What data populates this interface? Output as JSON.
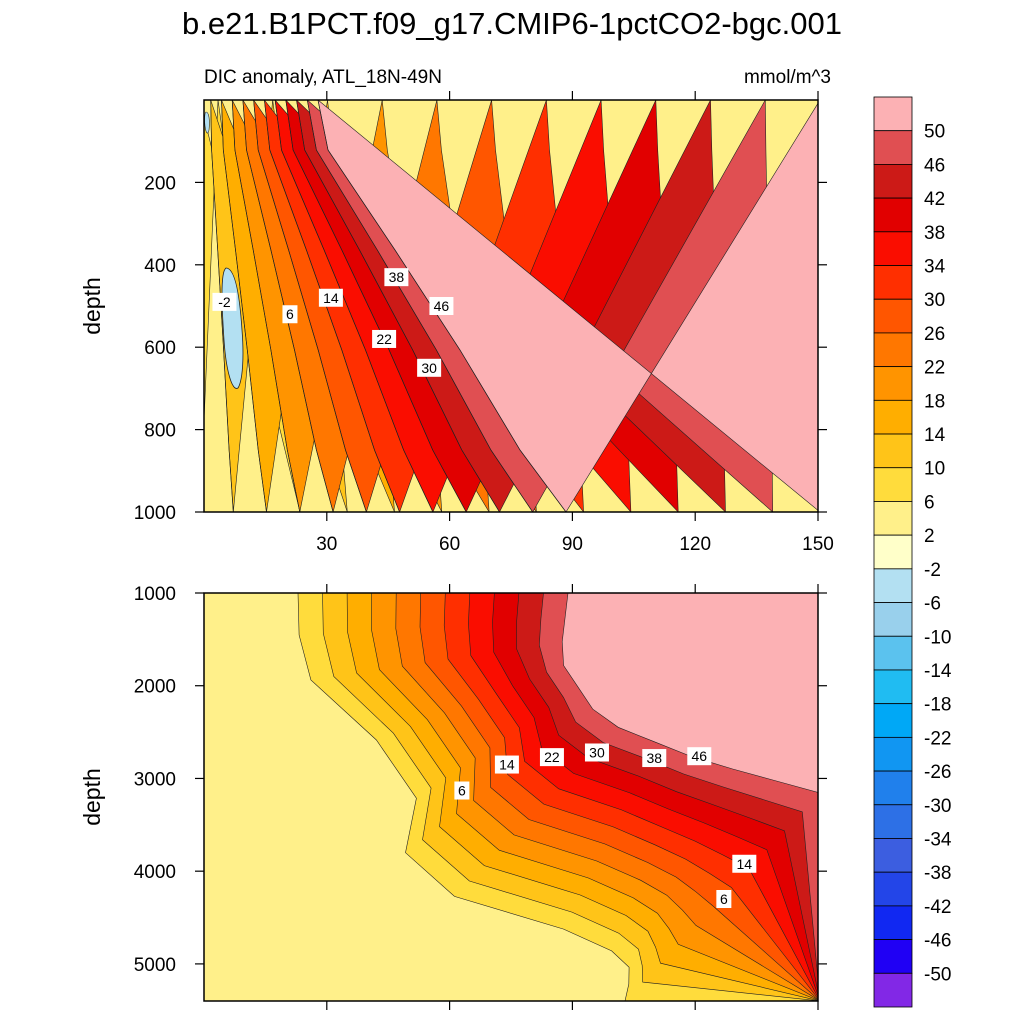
{
  "chart_data": {
    "type": "contour",
    "title": "b.e21.B1PCT.f09_g17.CMIP6-1pctCO2-bgc.001",
    "subtitle_left": "DIC anomaly, ATL_18N-49N",
    "subtitle_right": "mmol/m^3",
    "colorbar": {
      "labels": [
        "50",
        "46",
        "42",
        "38",
        "34",
        "30",
        "26",
        "22",
        "18",
        "14",
        "10",
        "6",
        "2",
        "-2",
        "-6",
        "-10",
        "-14",
        "-18",
        "-22",
        "-26",
        "-30",
        "-34",
        "-38",
        "-42",
        "-46",
        "-50"
      ],
      "colors": [
        "#fcb1b4",
        "#e04f52",
        "#cc1a17",
        "#e10000",
        "#fa0d00",
        "#ff2f00",
        "#ff5600",
        "#ff7700",
        "#ff9400",
        "#ffae00",
        "#ffc418",
        "#ffdc3c",
        "#fff08a",
        "#ffffc9",
        "#b3e0f2",
        "#99d0ec",
        "#5bc2ee",
        "#20bcf2",
        "#00a8f6",
        "#1196f2",
        "#2080ec",
        "#2d70e6",
        "#3c5ee0",
        "#2345e8",
        "#1128f2",
        "#2000f4",
        "#8228e6"
      ]
    },
    "panels": [
      {
        "name": "upper",
        "xlim": [
          0,
          150
        ],
        "ylim": [
          1000,
          0
        ],
        "xticks": [
          30,
          60,
          90,
          120,
          150
        ],
        "yticks": [
          200,
          400,
          600,
          800,
          1000
        ],
        "ylabel": "depth",
        "contour_labels": [
          {
            "text": "-2",
            "x": 5,
            "y": 490
          },
          {
            "text": "6",
            "x": 21,
            "y": 520
          },
          {
            "text": "14",
            "x": 31,
            "y": 480
          },
          {
            "text": "22",
            "x": 44,
            "y": 580
          },
          {
            "text": "38",
            "x": 47,
            "y": 430
          },
          {
            "text": "46",
            "x": 58,
            "y": 500
          },
          {
            "text": "30",
            "x": 55,
            "y": 650
          }
        ]
      },
      {
        "name": "lower",
        "xlim": [
          0,
          150
        ],
        "ylim": [
          5400,
          1000
        ],
        "xticks": [
          30,
          60,
          90,
          120,
          150
        ],
        "yticks": [
          1000,
          2000,
          3000,
          4000,
          5000
        ],
        "ylabel": "depth",
        "contour_labels": [
          {
            "text": "6",
            "x": 63,
            "y": 3130
          },
          {
            "text": "14",
            "x": 74,
            "y": 2850
          },
          {
            "text": "22",
            "x": 85,
            "y": 2770
          },
          {
            "text": "30",
            "x": 96,
            "y": 2720
          },
          {
            "text": "38",
            "x": 110,
            "y": 2780
          },
          {
            "text": "46",
            "x": 121,
            "y": 2760
          },
          {
            "text": "14",
            "x": 132,
            "y": 3920
          },
          {
            "text": "6",
            "x": 127,
            "y": 4300
          }
        ]
      }
    ]
  }
}
